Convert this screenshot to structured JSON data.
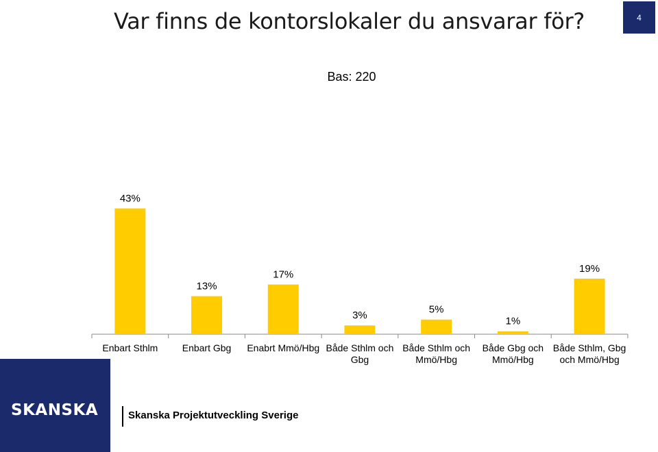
{
  "slide": {
    "title": "Var finns de kontorslokaler du ansvarar för?",
    "page_number": "4",
    "base": "Bas: 220"
  },
  "colors": {
    "bar": "#FFCC00",
    "brand_navy": "#1B2A6B"
  },
  "chart_data": {
    "type": "bar",
    "categories": [
      [
        "Enbart Sthlm"
      ],
      [
        "Enbart Gbg"
      ],
      [
        "Enabrt Mmö/Hbg"
      ],
      [
        "Både Sthlm och",
        "Gbg"
      ],
      [
        "Både Sthlm och",
        "Mmö/Hbg"
      ],
      [
        "Både Gbg och",
        "Mmö/Hbg"
      ],
      [
        "Både Sthlm, Gbg",
        "och Mmö/Hbg"
      ]
    ],
    "values": [
      43,
      13,
      17,
      3,
      5,
      1,
      19
    ],
    "value_labels": [
      "43%",
      "13%",
      "17%",
      "3%",
      "5%",
      "1%",
      "19%"
    ],
    "unit": "%",
    "title": "",
    "xlabel": "",
    "ylabel": "",
    "grid": false,
    "legend": "none"
  },
  "footer": {
    "logo_text": "SKANSKA",
    "company": "Skanska Projektutveckling Sverige"
  }
}
